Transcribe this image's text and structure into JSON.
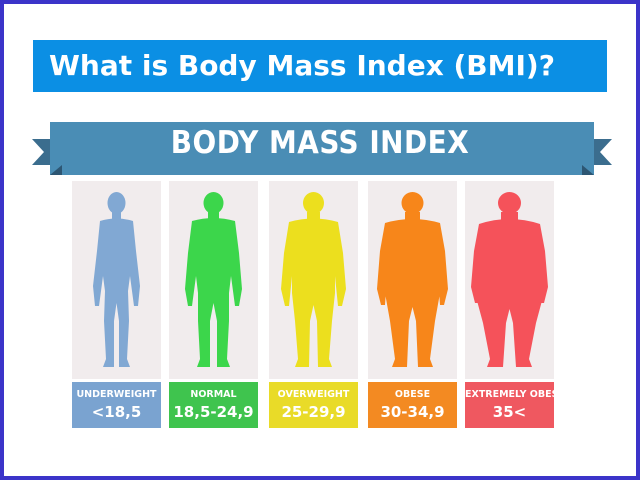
{
  "title": "What is Body Mass Index (BMI)?",
  "banner": "BODY MASS INDEX",
  "colors": {
    "title_bg": "#0b8fe4",
    "banner_bg": "#4a8db5",
    "border": "#3b34c9"
  },
  "categories": [
    {
      "label": "UNDERWEIGHT",
      "range": "<18,5",
      "color": "#81a8d3",
      "label_bg": "#7aa3d0"
    },
    {
      "label": "NORMAL",
      "range": "18,5-24,9",
      "color": "#3cd64b",
      "label_bg": "#3fc44e"
    },
    {
      "label": "OVERWEIGHT",
      "range": "25-29,9",
      "color": "#ecdf1e",
      "label_bg": "#e9db28"
    },
    {
      "label": "OBESE",
      "range": "30-34,9",
      "color": "#f7861a",
      "label_bg": "#f38a22"
    },
    {
      "label": "EXTREMELY OBESE",
      "range": "35<",
      "color": "#f5525a",
      "label_bg": "#ef5860"
    }
  ]
}
